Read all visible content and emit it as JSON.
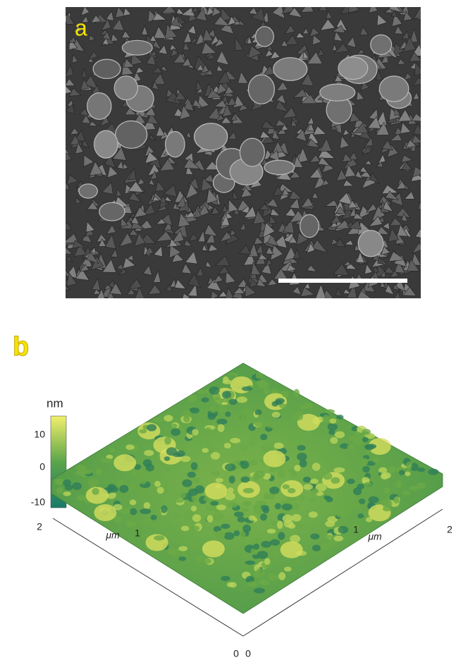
{
  "panel_a": {
    "label": "a"
  },
  "panel_b": {
    "label": "b",
    "colorbar": {
      "unit": "nm",
      "ticks": [
        "10",
        "0",
        "-10"
      ]
    },
    "left_axis": {
      "label": "μm",
      "ticks": [
        "2",
        "1",
        "0"
      ]
    },
    "right_axis": {
      "label": "μm",
      "ticks": [
        "0",
        "1",
        "2"
      ]
    }
  }
}
